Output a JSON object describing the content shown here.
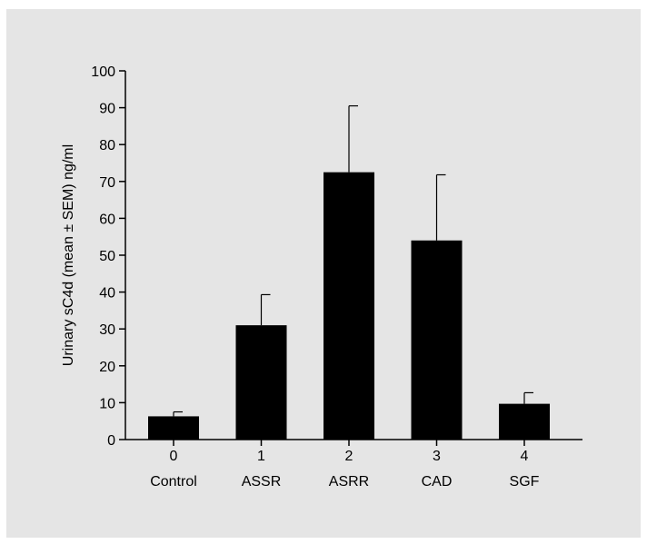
{
  "colors": {
    "panel_bg": "#e5e5e5",
    "bar_fill": "#000000",
    "axis": "#000000"
  },
  "chart_data": {
    "type": "bar",
    "title": "",
    "xlabel": "",
    "ylabel": "Urinary sC4d (mean ± SEM) ng/ml",
    "ylim": [
      0,
      100
    ],
    "yticks": [
      0,
      10,
      20,
      30,
      40,
      50,
      60,
      70,
      80,
      90,
      100
    ],
    "categories": [
      "Control",
      "ASSR",
      "ASRR",
      "CAD",
      "SGF"
    ],
    "category_codes": [
      "0",
      "1",
      "2",
      "3",
      "4"
    ],
    "values": [
      6.3,
      31,
      72.5,
      54,
      9.7
    ],
    "error_upper": [
      1.2,
      8.3,
      18,
      17.8,
      3
    ],
    "grid": false,
    "legend": "none"
  }
}
